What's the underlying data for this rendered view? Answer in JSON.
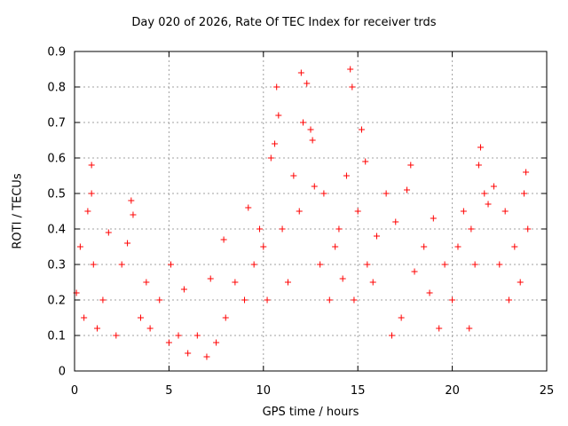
{
  "chart_data": {
    "type": "scatter",
    "title": "Day 020 of 2026, Rate Of TEC Index for receiver trds",
    "xlabel": "GPS time / hours",
    "ylabel": "ROTI / TECUs",
    "xlim": [
      0,
      25
    ],
    "ylim": [
      0,
      0.9
    ],
    "xticks": [
      "0",
      "5",
      "10",
      "15",
      "20",
      "25"
    ],
    "yticks": [
      "0",
      "0.1",
      "0.2",
      "0.3",
      "0.4",
      "0.5",
      "0.6",
      "0.7",
      "0.8",
      "0.9"
    ],
    "grid": true,
    "marker": "+",
    "color": "#ff0000",
    "series": [
      {
        "points": [
          [
            0.1,
            0.22
          ],
          [
            0.3,
            0.35
          ],
          [
            0.5,
            0.15
          ],
          [
            0.7,
            0.45
          ],
          [
            0.9,
            0.58
          ],
          [
            0.9,
            0.5
          ],
          [
            1.0,
            0.3
          ],
          [
            1.2,
            0.12
          ],
          [
            1.5,
            0.2
          ],
          [
            1.8,
            0.39
          ],
          [
            2.2,
            0.1
          ],
          [
            2.5,
            0.3
          ],
          [
            2.8,
            0.36
          ],
          [
            3.0,
            0.48
          ],
          [
            3.1,
            0.44
          ],
          [
            3.5,
            0.15
          ],
          [
            3.8,
            0.25
          ],
          [
            4.0,
            0.12
          ],
          [
            4.5,
            0.2
          ],
          [
            5.0,
            0.08
          ],
          [
            5.1,
            0.3
          ],
          [
            5.5,
            0.1
          ],
          [
            5.8,
            0.23
          ],
          [
            6.0,
            0.05
          ],
          [
            6.5,
            0.1
          ],
          [
            7.0,
            0.04
          ],
          [
            7.2,
            0.26
          ],
          [
            7.5,
            0.08
          ],
          [
            7.9,
            0.37
          ],
          [
            8.0,
            0.15
          ],
          [
            8.5,
            0.25
          ],
          [
            9.0,
            0.2
          ],
          [
            9.2,
            0.46
          ],
          [
            9.5,
            0.3
          ],
          [
            9.8,
            0.4
          ],
          [
            10.0,
            0.35
          ],
          [
            10.2,
            0.2
          ],
          [
            10.4,
            0.6
          ],
          [
            10.6,
            0.64
          ],
          [
            10.7,
            0.8
          ],
          [
            10.8,
            0.72
          ],
          [
            11.0,
            0.4
          ],
          [
            11.3,
            0.25
          ],
          [
            11.6,
            0.55
          ],
          [
            11.9,
            0.45
          ],
          [
            12.0,
            0.84
          ],
          [
            12.1,
            0.7
          ],
          [
            12.3,
            0.81
          ],
          [
            12.5,
            0.68
          ],
          [
            12.6,
            0.65
          ],
          [
            12.7,
            0.52
          ],
          [
            13.0,
            0.3
          ],
          [
            13.2,
            0.5
          ],
          [
            13.5,
            0.2
          ],
          [
            13.8,
            0.35
          ],
          [
            14.0,
            0.4
          ],
          [
            14.2,
            0.26
          ],
          [
            14.4,
            0.55
          ],
          [
            14.6,
            0.85
          ],
          [
            14.7,
            0.8
          ],
          [
            14.8,
            0.2
          ],
          [
            15.0,
            0.45
          ],
          [
            15.2,
            0.68
          ],
          [
            15.4,
            0.59
          ],
          [
            15.5,
            0.3
          ],
          [
            15.8,
            0.25
          ],
          [
            16.0,
            0.38
          ],
          [
            16.5,
            0.5
          ],
          [
            16.8,
            0.1
          ],
          [
            17.0,
            0.42
          ],
          [
            17.3,
            0.15
          ],
          [
            17.6,
            0.51
          ],
          [
            17.8,
            0.58
          ],
          [
            18.0,
            0.28
          ],
          [
            18.5,
            0.35
          ],
          [
            18.8,
            0.22
          ],
          [
            19.0,
            0.43
          ],
          [
            19.3,
            0.12
          ],
          [
            19.6,
            0.3
          ],
          [
            20.0,
            0.2
          ],
          [
            20.3,
            0.35
          ],
          [
            20.6,
            0.45
          ],
          [
            20.9,
            0.12
          ],
          [
            21.0,
            0.4
          ],
          [
            21.2,
            0.3
          ],
          [
            21.4,
            0.58
          ],
          [
            21.5,
            0.63
          ],
          [
            21.7,
            0.5
          ],
          [
            21.9,
            0.47
          ],
          [
            22.2,
            0.52
          ],
          [
            22.5,
            0.3
          ],
          [
            22.8,
            0.45
          ],
          [
            23.0,
            0.2
          ],
          [
            23.3,
            0.35
          ],
          [
            23.6,
            0.25
          ],
          [
            23.8,
            0.5
          ],
          [
            23.9,
            0.56
          ],
          [
            24.0,
            0.4
          ]
        ]
      }
    ]
  }
}
